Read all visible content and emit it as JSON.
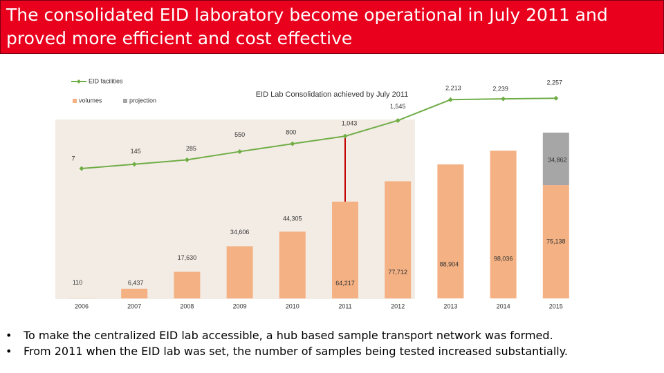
{
  "chart_data": {
    "type": "bar",
    "title": "The consolidated EID laboratory become operational in July 2011 and proved more efficient and cost effective",
    "annotation": "EID Lab Consolidation achieved by July 2011",
    "categories": [
      "2006",
      "2007",
      "2008",
      "2009",
      "2010",
      "2011",
      "2012",
      "2013",
      "2014",
      "2015"
    ],
    "series": [
      {
        "name": "volumes",
        "color": "#f4b183",
        "values": [
          110,
          6437,
          17630,
          34606,
          44305,
          64217,
          77712,
          88904,
          98036,
          75138
        ],
        "value_labels": [
          "110",
          "6,437",
          "17,630",
          "34,606",
          "44,305",
          "64,217",
          "77,712",
          "88,904",
          "98,036",
          "75,138"
        ]
      },
      {
        "name": "projection",
        "color": "#a6a6a6",
        "values": [
          null,
          null,
          null,
          null,
          null,
          null,
          null,
          null,
          null,
          34862
        ],
        "value_labels": [
          null,
          null,
          null,
          null,
          null,
          null,
          null,
          null,
          null,
          "34,862"
        ]
      },
      {
        "name": "EID facilities",
        "type": "line",
        "axis": "y2",
        "color": "#70ad47",
        "values": [
          7,
          145,
          285,
          550,
          800,
          1043,
          1545,
          2213,
          2239,
          2257
        ],
        "value_labels": [
          "7",
          "145",
          "285",
          "550",
          "800",
          "1,043",
          "1,545",
          "2,213",
          "2,239",
          "2,257"
        ]
      }
    ],
    "ylim": [
      0,
      110000
    ],
    "y2lim": [
      0,
      2500
    ]
  },
  "bullets": [
    "To make the centralized EID lab accessible, a hub based sample transport network was formed.",
    "From 2011 when the EID lab was set, the number of samples being tested increased substantially."
  ]
}
